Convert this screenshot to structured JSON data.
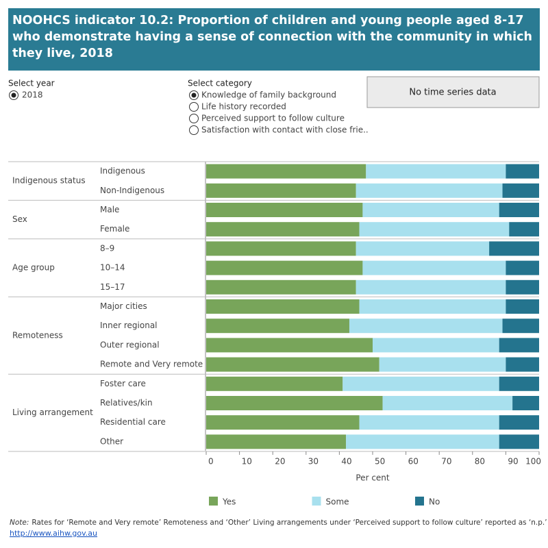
{
  "header": {
    "title": "NOOHCS indicator 10.2: Proportion of children and young people aged 8-17 who demonstrate having a sense of connection with the community in which they live, 2018"
  },
  "controls": {
    "year_label": "Select year",
    "years": [
      "2018"
    ],
    "category_label": "Select category",
    "categories": [
      "Knowledge of family background",
      "Life history recorded",
      "Perceived support to follow culture",
      "Satisfaction with contact with close frie.."
    ],
    "info": "No time series data"
  },
  "chart_data": {
    "type": "stacked-bar-horizontal",
    "groups": [
      {
        "name": "Indigenous status",
        "categories": [
          "Indigenous",
          "Non-Indigenous"
        ]
      },
      {
        "name": "Sex",
        "categories": [
          "Male",
          "Female"
        ]
      },
      {
        "name": "Age group",
        "categories": [
          "8–9",
          "10–14",
          "15–17"
        ]
      },
      {
        "name": "Remoteness",
        "categories": [
          "Major cities",
          "Inner regional",
          "Outer regional",
          "Remote and Very remote"
        ]
      },
      {
        "name": "Living arrangement",
        "categories": [
          "Foster care",
          "Relatives/kin",
          "Residential care",
          "Other"
        ]
      }
    ],
    "series": [
      {
        "name": "Yes",
        "color": "#78a55a",
        "values": [
          48,
          45,
          47,
          46,
          45,
          47,
          45,
          46,
          43,
          50,
          52,
          41,
          53,
          46,
          42
        ]
      },
      {
        "name": "Some",
        "color": "#a8e0ee",
        "values": [
          42,
          44,
          41,
          45,
          40,
          43,
          45,
          44,
          46,
          38,
          38,
          47,
          39,
          42,
          46
        ]
      },
      {
        "name": "No",
        "color": "#24748e",
        "values": [
          10,
          11,
          12,
          9,
          15,
          10,
          10,
          10,
          11,
          12,
          10,
          12,
          8,
          12,
          12
        ]
      }
    ],
    "xlabel": "Per cent",
    "xlim": [
      0,
      100
    ],
    "xticks": [
      0,
      10,
      20,
      30,
      40,
      50,
      60,
      70,
      80,
      90,
      100
    ]
  },
  "footer": {
    "note_label": "Note:",
    "note": "Rates for ‘Remote and Very remote’ Remoteness and ‘Other’ Living arrangements under ‘Perceived support to follow culture’ reported as ‘n.p.’",
    "link": "http://www.aihw.gov.au"
  }
}
